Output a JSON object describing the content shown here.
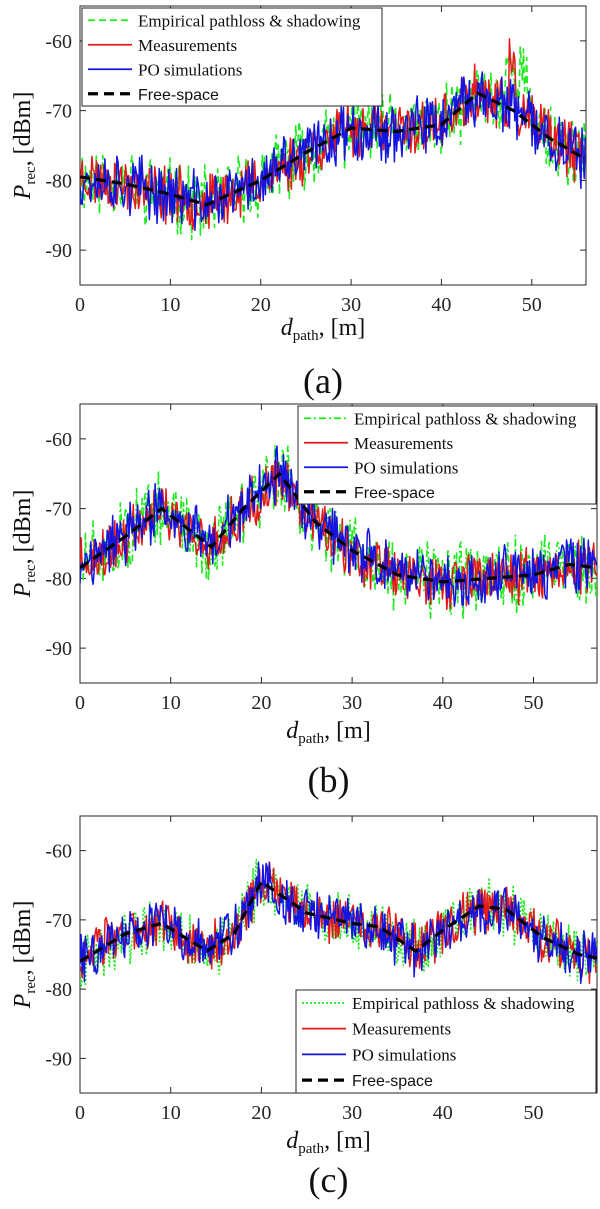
{
  "chart_data": [
    {
      "type": "line",
      "caption": "(a)",
      "ylabel": {
        "main": "P",
        "sub": "rec",
        "unit": ", [dBm]"
      },
      "xlabel": {
        "main": "d",
        "sub": "path",
        "unit": ", [m]"
      },
      "xlim": [
        0,
        56
      ],
      "ylim": [
        -95,
        -55
      ],
      "xticks": [
        0,
        10,
        20,
        30,
        40,
        50
      ],
      "yticks": [
        -60,
        -70,
        -80,
        -90
      ],
      "legend_position": "top-left",
      "free_space": {
        "x": [
          0,
          5,
          10,
          14,
          20,
          25,
          30,
          35,
          40,
          44,
          48,
          52,
          56
        ],
        "y": [
          -79.5,
          -80.5,
          -82,
          -83.5,
          -80,
          -76,
          -72.5,
          -73,
          -72,
          -67.5,
          -70,
          -74,
          -77
        ]
      },
      "series": [
        {
          "name": "Empirical pathloss & shadowing",
          "color": "#1eea1e",
          "dash": "7,4",
          "width": 1.6,
          "noise": 4.2,
          "spike": [
            47,
            49.5
          ],
          "seed": 11
        },
        {
          "name": "Measurements",
          "color": "#e41a1a",
          "dash": "",
          "width": 1.5,
          "noise": 3.4,
          "spike": [
            47.5,
            48.2
          ],
          "seed": 23
        },
        {
          "name": "PO simulations",
          "color": "#1414e0",
          "dash": "",
          "width": 1.5,
          "noise": 3.6,
          "spike": [],
          "seed": 37
        },
        {
          "name": "Free-space",
          "color": "#000000",
          "dash": "10,6",
          "width": 3.2
        }
      ]
    },
    {
      "type": "line",
      "caption": "(b)",
      "ylabel": {
        "main": "P",
        "sub": "rec",
        "unit": ", [dBm]"
      },
      "xlabel": {
        "main": "d",
        "sub": "path",
        "unit": ", [m]"
      },
      "xlim": [
        0,
        57
      ],
      "ylim": [
        -95,
        -55
      ],
      "xticks": [
        0,
        10,
        20,
        30,
        40,
        50
      ],
      "yticks": [
        -60,
        -70,
        -80,
        -90
      ],
      "legend_position": "top-right",
      "free_space": {
        "x": [
          0,
          5,
          9,
          14.5,
          18,
          22,
          26,
          30,
          35,
          40,
          45,
          50,
          54,
          57
        ],
        "y": [
          -78.5,
          -74,
          -70,
          -75.5,
          -70,
          -65,
          -72,
          -76,
          -79.5,
          -80.5,
          -80,
          -79.5,
          -78,
          -78.5
        ]
      },
      "series": [
        {
          "name": "Empirical pathloss & shadowing",
          "color": "#1eea1e",
          "dash": "7,3,2,3",
          "width": 1.6,
          "noise": 4.4,
          "spike": [],
          "seed": 51
        },
        {
          "name": "Measurements",
          "color": "#e41a1a",
          "dash": "",
          "width": 1.5,
          "noise": 3.2,
          "spike": [],
          "seed": 63
        },
        {
          "name": "PO simulations",
          "color": "#1414e0",
          "dash": "",
          "width": 1.5,
          "noise": 3.4,
          "spike": [],
          "seed": 77
        },
        {
          "name": "Free-space",
          "color": "#000000",
          "dash": "10,6",
          "width": 3.2
        }
      ]
    },
    {
      "type": "line",
      "caption": "(c)",
      "ylabel": {
        "main": "P",
        "sub": "rec",
        "unit": ", [dBm]"
      },
      "xlabel": {
        "main": "d",
        "sub": "path",
        "unit": ", [m]"
      },
      "xlim": [
        0,
        57
      ],
      "ylim": [
        -95,
        -55
      ],
      "xticks": [
        0,
        10,
        20,
        30,
        40,
        50
      ],
      "yticks": [
        -60,
        -70,
        -80,
        -90
      ],
      "legend_position": "bottom-right",
      "free_space": {
        "x": [
          0,
          5,
          9,
          14,
          17,
          20,
          25,
          30,
          33,
          37,
          40,
          44,
          47,
          51,
          55,
          57
        ],
        "y": [
          -76,
          -72,
          -70.5,
          -74.5,
          -72,
          -64.5,
          -69,
          -70.5,
          -71,
          -74.5,
          -71.5,
          -68,
          -68.5,
          -72.5,
          -75,
          -75.5
        ]
      },
      "series": [
        {
          "name": "Empirical pathloss & shadowing",
          "color": "#1eea1e",
          "dash": "2,2",
          "width": 1.6,
          "noise": 3.4,
          "spike": [],
          "seed": 91
        },
        {
          "name": "Measurements",
          "color": "#e41a1a",
          "dash": "",
          "width": 1.5,
          "noise": 3.0,
          "spike": [],
          "seed": 103
        },
        {
          "name": "PO simulations",
          "color": "#1414e0",
          "dash": "",
          "width": 1.5,
          "noise": 3.0,
          "spike": [],
          "seed": 117
        },
        {
          "name": "Free-space",
          "color": "#000000",
          "dash": "10,6",
          "width": 3.2
        }
      ]
    }
  ]
}
